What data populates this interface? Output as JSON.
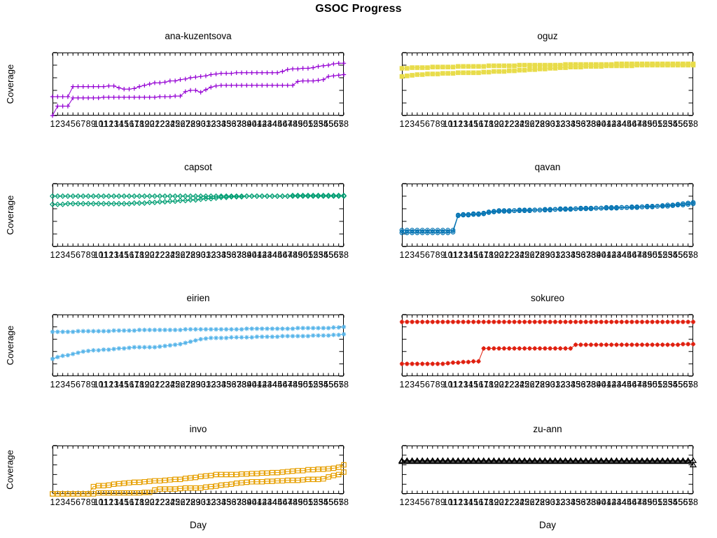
{
  "title": "GSOC Progress",
  "axes": {
    "xlabel": "Day",
    "ylabel": "Coverage",
    "yticks": [
      0,
      20,
      40,
      60,
      80,
      100
    ],
    "x_start": 1,
    "x_end": 58,
    "ylim": [
      0,
      100
    ],
    "grid": "off",
    "legend": "none"
  },
  "chart_data": [
    {
      "type": "line",
      "title": "ana-kuzentsova",
      "color": "#9400D3",
      "marker": "plus",
      "x_range": [
        1,
        58
      ],
      "ylim": [
        0,
        100
      ],
      "series": [
        {
          "name": "series-1",
          "values": [
            30,
            30,
            30,
            30,
            46,
            46,
            46,
            46,
            46,
            46,
            46,
            47,
            47,
            44,
            42,
            42,
            43,
            46,
            48,
            50,
            52,
            52,
            53,
            55,
            55,
            57,
            58,
            60,
            61,
            62,
            63,
            65,
            66,
            67,
            67,
            67,
            68,
            68,
            68,
            68,
            68,
            68,
            68,
            68,
            68,
            70,
            73,
            74,
            74,
            75,
            75,
            76,
            78,
            79,
            80,
            82,
            83,
            83
          ]
        },
        {
          "name": "series-2",
          "values": [
            0,
            15,
            15,
            15,
            28,
            28,
            28,
            28,
            28,
            28,
            29,
            29,
            29,
            29,
            29,
            29,
            29,
            29,
            29,
            29,
            29,
            30,
            30,
            30,
            31,
            31,
            38,
            40,
            40,
            37,
            41,
            45,
            47,
            48,
            48,
            48,
            48,
            48,
            48,
            48,
            48,
            48,
            48,
            48,
            48,
            48,
            48,
            48,
            54,
            55,
            55,
            55,
            56,
            57,
            62,
            63,
            64,
            65
          ]
        }
      ]
    },
    {
      "type": "line",
      "title": "oguz",
      "color": "#E8DC4A",
      "marker": "filled-square",
      "x_range": [
        1,
        58
      ],
      "ylim": [
        0,
        100
      ],
      "series": [
        {
          "name": "series-1",
          "values": [
            75,
            75,
            76,
            76,
            76,
            76,
            77,
            77,
            77,
            77,
            77,
            78,
            78,
            78,
            78,
            78,
            78,
            79,
            79,
            79,
            79,
            79,
            79,
            80,
            80,
            80,
            80,
            80,
            80,
            80,
            80,
            80,
            81,
            81,
            81,
            81,
            81,
            81,
            81,
            81,
            81,
            81,
            82,
            82,
            82,
            82,
            82,
            82,
            82,
            82,
            82,
            82,
            82,
            82,
            82,
            82,
            82,
            82
          ]
        },
        {
          "name": "series-2",
          "values": [
            62,
            63,
            64,
            65,
            65,
            66,
            66,
            66,
            67,
            67,
            67,
            68,
            68,
            68,
            68,
            68,
            69,
            69,
            70,
            70,
            70,
            71,
            71,
            72,
            72,
            73,
            73,
            74,
            74,
            75,
            75,
            76,
            76,
            77,
            77,
            77,
            78,
            78,
            78,
            78,
            79,
            79,
            79,
            79,
            79,
            79,
            80,
            80,
            80,
            80,
            80,
            80,
            80,
            80,
            80,
            80,
            80,
            80
          ]
        }
      ]
    },
    {
      "type": "line",
      "title": "capsot",
      "color": "#009E73",
      "marker": "open-diamond",
      "x_range": [
        1,
        58
      ],
      "ylim": [
        0,
        100
      ],
      "series": [
        {
          "name": "series-1",
          "values": [
            80,
            80,
            80,
            80,
            80,
            80,
            80,
            80,
            80,
            80,
            80,
            80,
            80,
            80,
            80,
            80,
            80,
            80,
            80,
            80,
            80,
            80,
            80,
            80,
            80,
            80,
            80,
            80,
            80,
            80,
            80,
            80,
            80,
            80,
            80,
            80,
            80,
            80,
            80,
            80,
            80,
            80,
            80,
            80,
            80,
            80,
            80,
            81,
            81,
            81,
            81,
            81,
            81,
            81,
            81,
            81,
            81,
            81
          ]
        },
        {
          "name": "series-2",
          "values": [
            67,
            67,
            67,
            68,
            68,
            68,
            68,
            68,
            68,
            68,
            68,
            68,
            68,
            68,
            68,
            68,
            69,
            69,
            69,
            70,
            70,
            71,
            71,
            72,
            72,
            73,
            73,
            74,
            74,
            75,
            76,
            76,
            77,
            78,
            78,
            79,
            79,
            79,
            80,
            80,
            80,
            80,
            80,
            80,
            80,
            80,
            80,
            80,
            80,
            80,
            80,
            80,
            80,
            80,
            80,
            80,
            80,
            80
          ]
        }
      ]
    },
    {
      "type": "line",
      "title": "qavan",
      "color": "#0072B2",
      "marker": "circle-plus",
      "x_range": [
        1,
        58
      ],
      "ylim": [
        0,
        100
      ],
      "series": [
        {
          "name": "series-1",
          "values": [
            26,
            26,
            26,
            26,
            26,
            26,
            26,
            26,
            26,
            26,
            26,
            50,
            51,
            51,
            52,
            52,
            53,
            55,
            56,
            57,
            57,
            57,
            57,
            58,
            58,
            58,
            58,
            58,
            59,
            59,
            59,
            60,
            60,
            60,
            60,
            61,
            61,
            61,
            61,
            61,
            62,
            62,
            62,
            62,
            62,
            63,
            63,
            63,
            64,
            64,
            64,
            65,
            66,
            66,
            67,
            68,
            69,
            70
          ]
        },
        {
          "name": "series-2",
          "values": [
            22,
            22,
            22,
            22,
            22,
            22,
            22,
            22,
            22,
            22,
            23,
            49,
            50,
            50,
            51,
            51,
            52,
            54,
            55,
            56,
            56,
            56,
            57,
            57,
            57,
            57,
            58,
            58,
            58,
            58,
            59,
            59,
            59,
            59,
            60,
            60,
            60,
            60,
            61,
            61,
            61,
            61,
            61,
            62,
            62,
            62,
            62,
            63,
            63,
            63,
            64,
            64,
            64,
            65,
            66,
            66,
            67,
            68
          ]
        }
      ]
    },
    {
      "type": "line",
      "title": "eirien",
      "color": "#56B4E9",
      "marker": "asterisk",
      "x_range": [
        1,
        58
      ],
      "ylim": [
        0,
        100
      ],
      "series": [
        {
          "name": "series-1",
          "values": [
            72,
            72,
            72,
            72,
            72,
            73,
            73,
            73,
            73,
            73,
            73,
            73,
            74,
            74,
            74,
            74,
            74,
            75,
            75,
            75,
            75,
            75,
            75,
            75,
            75,
            75,
            76,
            76,
            76,
            76,
            76,
            76,
            76,
            76,
            76,
            76,
            76,
            76,
            77,
            77,
            77,
            77,
            77,
            77,
            77,
            77,
            77,
            77,
            78,
            78,
            78,
            78,
            78,
            78,
            78,
            79,
            79,
            80
          ]
        },
        {
          "name": "series-2",
          "values": [
            28,
            31,
            33,
            34,
            36,
            38,
            40,
            41,
            42,
            42,
            43,
            43,
            44,
            45,
            45,
            46,
            47,
            47,
            47,
            47,
            47,
            48,
            49,
            50,
            51,
            52,
            54,
            56,
            58,
            60,
            61,
            62,
            62,
            62,
            62,
            63,
            63,
            63,
            63,
            63,
            64,
            64,
            64,
            64,
            64,
            65,
            65,
            65,
            65,
            65,
            65,
            66,
            66,
            66,
            66,
            67,
            67,
            68
          ]
        }
      ]
    },
    {
      "type": "line",
      "title": "sokureo",
      "color": "#E02010",
      "marker": "filled-star",
      "x_range": [
        1,
        58
      ],
      "ylim": [
        0,
        100
      ],
      "series": [
        {
          "name": "series-1",
          "values": [
            88,
            88,
            88,
            88,
            88,
            88,
            88,
            88,
            88,
            88,
            88,
            88,
            88,
            88,
            88,
            88,
            88,
            88,
            88,
            88,
            88,
            88,
            88,
            88,
            88,
            88,
            88,
            88,
            88,
            88,
            88,
            88,
            88,
            88,
            88,
            88,
            88,
            88,
            88,
            88,
            88,
            88,
            88,
            88,
            88,
            88,
            88,
            88,
            88,
            88,
            88,
            88,
            88,
            88,
            88,
            88,
            88,
            88
          ]
        },
        {
          "name": "series-2",
          "values": [
            20,
            20,
            20,
            20,
            20,
            20,
            20,
            20,
            20,
            21,
            22,
            22,
            23,
            23,
            24,
            24,
            45,
            45,
            45,
            45,
            45,
            45,
            45,
            45,
            45,
            45,
            45,
            45,
            45,
            45,
            45,
            45,
            45,
            45,
            51,
            51,
            51,
            51,
            51,
            51,
            51,
            51,
            51,
            51,
            51,
            51,
            51,
            51,
            51,
            51,
            51,
            51,
            51,
            51,
            51,
            52,
            52,
            52
          ]
        }
      ]
    },
    {
      "type": "line",
      "title": "invo",
      "color": "#E69F00",
      "marker": "open-square",
      "x_range": [
        1,
        58
      ],
      "ylim": [
        0,
        100
      ],
      "series": [
        {
          "name": "series-1",
          "values": [
            0,
            0,
            0,
            0,
            0,
            0,
            0,
            0,
            15,
            17,
            17,
            18,
            20,
            21,
            22,
            23,
            24,
            24,
            25,
            26,
            27,
            27,
            28,
            29,
            30,
            30,
            32,
            33,
            34,
            36,
            37,
            38,
            40,
            40,
            40,
            40,
            40,
            41,
            41,
            42,
            42,
            43,
            43,
            44,
            44,
            45,
            46,
            47,
            48,
            48,
            50,
            50,
            51,
            51,
            52,
            53,
            55,
            60
          ]
        },
        {
          "name": "series-2",
          "values": [
            0,
            0,
            0,
            0,
            0,
            0,
            0,
            0,
            0,
            2,
            2,
            2,
            2,
            2,
            2,
            2,
            2,
            2,
            3,
            3,
            8,
            10,
            10,
            10,
            10,
            11,
            12,
            12,
            12,
            12,
            14,
            15,
            16,
            18,
            19,
            20,
            22,
            23,
            24,
            25,
            25,
            25,
            26,
            26,
            27,
            27,
            28,
            28,
            28,
            29,
            30,
            30,
            30,
            31,
            35,
            38,
            40,
            45
          ]
        }
      ]
    },
    {
      "type": "line",
      "title": "zu-ann",
      "color": "#000000",
      "marker": "open-triangle",
      "x_range": [
        1,
        58
      ],
      "ylim": [
        0,
        100
      ],
      "series": [
        {
          "name": "series-1",
          "values": [
            69,
            69,
            69,
            69,
            69,
            69,
            69,
            69,
            69,
            69,
            69,
            69,
            69,
            69,
            69,
            69,
            69,
            69,
            69,
            69,
            69,
            69,
            69,
            69,
            69,
            69,
            69,
            69,
            69,
            69,
            69,
            69,
            69,
            69,
            69,
            69,
            69,
            69,
            69,
            69,
            69,
            69,
            69,
            69,
            69,
            69,
            69,
            69,
            69,
            69,
            69,
            69,
            69,
            69,
            69,
            69,
            69,
            69
          ]
        },
        {
          "name": "series-2",
          "values": [
            67,
            67,
            67,
            67,
            67,
            67,
            67,
            67,
            67,
            67,
            67,
            67,
            67,
            67,
            67,
            67,
            67,
            67,
            67,
            67,
            67,
            67,
            67,
            67,
            67,
            67,
            67,
            67,
            67,
            67,
            67,
            67,
            67,
            67,
            67,
            67,
            67,
            67,
            67,
            67,
            67,
            67,
            67,
            67,
            67,
            67,
            67,
            67,
            67,
            67,
            67,
            67,
            67,
            67,
            67,
            67,
            67,
            60
          ]
        }
      ]
    }
  ]
}
